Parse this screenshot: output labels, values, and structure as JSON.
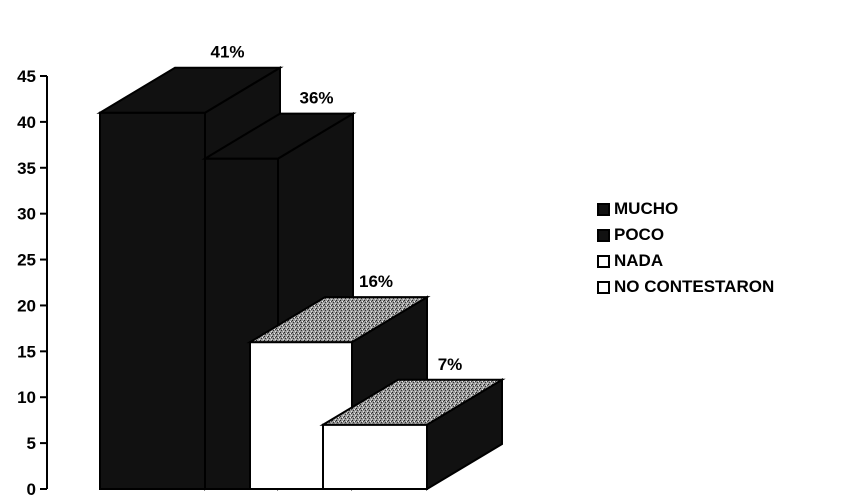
{
  "chart_data": {
    "type": "bar",
    "categories": [
      "MUCHO",
      "POCO",
      "NADA",
      "NO CONTESTARON"
    ],
    "values": [
      41,
      36,
      16,
      7
    ],
    "data_labels": [
      "41%",
      "36%",
      "16%",
      "7%"
    ],
    "ylim": [
      0,
      45
    ],
    "yticks": [
      0,
      5,
      10,
      15,
      20,
      25,
      30,
      35,
      40,
      45
    ],
    "legend": {
      "position": "right",
      "entries": [
        {
          "label": "MUCHO",
          "color": "#111111"
        },
        {
          "label": "POCO",
          "color": "#111111"
        },
        {
          "label": "NADA",
          "color": "#ffffff"
        },
        {
          "label": "NO CONTESTARON",
          "color": "#ffffff"
        }
      ]
    },
    "grid": false,
    "three_d": true,
    "colors": {
      "dark": "#111111",
      "light": "#ffffff",
      "top_face": "#8c8c8c"
    }
  }
}
